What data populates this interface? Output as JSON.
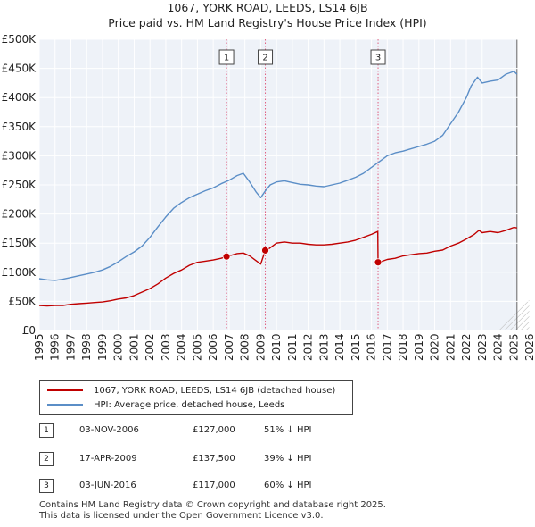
{
  "chart_data": {
    "type": "line",
    "title": "1067, YORK ROAD, LEEDS, LS14 6JB",
    "subtitle": "Price paid vs. HM Land Registry's House Price Index (HPI)",
    "xlabel": "",
    "ylabel": "",
    "xlim": [
      1995,
      2026
    ],
    "ylim": [
      0,
      500000
    ],
    "y_ticks": [
      {
        "value": 0,
        "label": "£0"
      },
      {
        "value": 50000,
        "label": "£50K"
      },
      {
        "value": 100000,
        "label": "£100K"
      },
      {
        "value": 150000,
        "label": "£150K"
      },
      {
        "value": 200000,
        "label": "£200K"
      },
      {
        "value": 250000,
        "label": "£250K"
      },
      {
        "value": 300000,
        "label": "£300K"
      },
      {
        "value": 350000,
        "label": "£350K"
      },
      {
        "value": 400000,
        "label": "£400K"
      },
      {
        "value": 450000,
        "label": "£450K"
      },
      {
        "value": 500000,
        "label": "£500K"
      }
    ],
    "x_ticks": [
      "1995",
      "1996",
      "1997",
      "1998",
      "1999",
      "2000",
      "2001",
      "2002",
      "2003",
      "2004",
      "2005",
      "2006",
      "2007",
      "2008",
      "2009",
      "2010",
      "2011",
      "2012",
      "2013",
      "2014",
      "2015",
      "2016",
      "2017",
      "2018",
      "2019",
      "2020",
      "2021",
      "2022",
      "2023",
      "2024",
      "2025",
      "2026"
    ],
    "grid": true,
    "data_end_year": 2025.2,
    "series": [
      {
        "name": "1067, YORK ROAD, LEEDS, LS14 6JB (detached house)",
        "color": "#c00000",
        "x": [
          1995.0,
          1995.5,
          1996.0,
          1996.5,
          1997.0,
          1997.5,
          1998.0,
          1998.5,
          1999.0,
          1999.5,
          2000.0,
          2000.5,
          2001.0,
          2001.5,
          2002.0,
          2002.5,
          2003.0,
          2003.5,
          2004.0,
          2004.5,
          2005.0,
          2005.5,
          2006.0,
          2006.5,
          2006.84,
          2007.0,
          2007.5,
          2007.9,
          2008.3,
          2008.7,
          2009.0,
          2009.29,
          2009.5,
          2010.0,
          2010.5,
          2011.0,
          2011.5,
          2012.0,
          2012.5,
          2013.0,
          2013.5,
          2014.0,
          2014.5,
          2015.0,
          2015.5,
          2016.0,
          2016.4,
          2016.42,
          2016.7,
          2017.0,
          2017.5,
          2018.0,
          2018.5,
          2019.0,
          2019.5,
          2020.0,
          2020.5,
          2021.0,
          2021.5,
          2022.0,
          2022.5,
          2022.8,
          2023.0,
          2023.5,
          2024.0,
          2024.5,
          2025.0,
          2025.2
        ],
        "values": [
          43000,
          42000,
          43000,
          43000,
          45000,
          46000,
          47000,
          48000,
          49000,
          51000,
          54000,
          56000,
          60000,
          66000,
          72000,
          80000,
          90000,
          98000,
          104000,
          112000,
          117000,
          119000,
          121000,
          124000,
          127000,
          128000,
          132000,
          133000,
          128000,
          120000,
          114000,
          137500,
          140000,
          150000,
          152000,
          150000,
          150000,
          148000,
          147000,
          147000,
          148000,
          150000,
          152000,
          155000,
          160000,
          165000,
          170000,
          117000,
          119000,
          122000,
          124000,
          128000,
          130000,
          132000,
          133000,
          136000,
          138000,
          145000,
          150000,
          157000,
          165000,
          172000,
          168000,
          170000,
          168000,
          172000,
          177000,
          176000
        ]
      },
      {
        "name": "HPI: Average price, detached house, Leeds",
        "color": "#5b8ec7",
        "x": [
          1995.0,
          1995.5,
          1996.0,
          1996.5,
          1997.0,
          1997.5,
          1998.0,
          1998.5,
          1999.0,
          1999.5,
          2000.0,
          2000.5,
          2001.0,
          2001.5,
          2002.0,
          2002.5,
          2003.0,
          2003.5,
          2004.0,
          2004.5,
          2005.0,
          2005.5,
          2006.0,
          2006.5,
          2007.0,
          2007.5,
          2007.9,
          2008.3,
          2008.7,
          2009.0,
          2009.3,
          2009.6,
          2010.0,
          2010.5,
          2011.0,
          2011.5,
          2012.0,
          2012.5,
          2013.0,
          2013.5,
          2014.0,
          2014.5,
          2015.0,
          2015.5,
          2016.0,
          2016.5,
          2017.0,
          2017.5,
          2018.0,
          2018.5,
          2019.0,
          2019.5,
          2020.0,
          2020.5,
          2021.0,
          2021.5,
          2022.0,
          2022.3,
          2022.7,
          2023.0,
          2023.5,
          2024.0,
          2024.5,
          2025.0,
          2025.2
        ],
        "values": [
          89000,
          87000,
          86000,
          88000,
          91000,
          94000,
          97000,
          100000,
          104000,
          110000,
          118000,
          127000,
          135000,
          145000,
          160000,
          178000,
          195000,
          210000,
          220000,
          228000,
          234000,
          240000,
          245000,
          252000,
          258000,
          266000,
          270000,
          255000,
          238000,
          228000,
          240000,
          250000,
          255000,
          257000,
          254000,
          251000,
          250000,
          248000,
          247000,
          250000,
          253000,
          258000,
          263000,
          270000,
          280000,
          290000,
          300000,
          305000,
          308000,
          312000,
          316000,
          320000,
          325000,
          335000,
          355000,
          375000,
          400000,
          420000,
          435000,
          425000,
          428000,
          430000,
          440000,
          445000,
          440000
        ]
      }
    ],
    "sale_markers": [
      {
        "label": "1",
        "x": 2006.84,
        "value": 127000
      },
      {
        "label": "2",
        "x": 2009.29,
        "value": 137500
      },
      {
        "label": "3",
        "x": 2016.42,
        "value": 117000
      }
    ]
  },
  "legend": {
    "property_label": "1067, YORK ROAD, LEEDS, LS14 6JB (detached house)",
    "hpi_label": "HPI: Average price, detached house, Leeds",
    "property_color": "#c00000",
    "hpi_color": "#5b8ec7"
  },
  "sales": [
    {
      "num": "1",
      "date": "03-NOV-2006",
      "price": "£127,000",
      "hpi": "51% ↓ HPI"
    },
    {
      "num": "2",
      "date": "17-APR-2009",
      "price": "£137,500",
      "hpi": "39% ↓ HPI"
    },
    {
      "num": "3",
      "date": "03-JUN-2016",
      "price": "£117,000",
      "hpi": "60% ↓ HPI"
    }
  ],
  "footer": {
    "line1": "Contains HM Land Registry data © Crown copyright and database right 2025.",
    "line2": "This data is licensed under the Open Government Licence v3.0."
  }
}
